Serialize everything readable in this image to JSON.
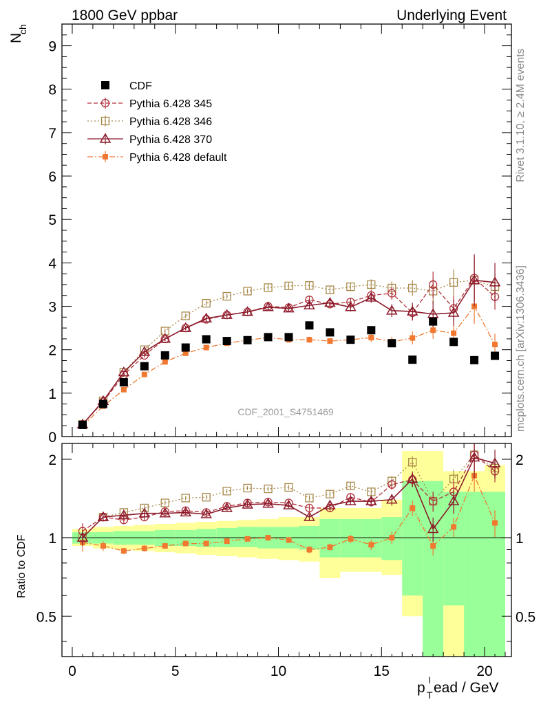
{
  "header": {
    "left": "1800 GeV ppbar",
    "right": "Underlying Event"
  },
  "side_labels": {
    "top": "Rivet 3.1.10, ≥ 2.4M events",
    "bottom": "mcplots.cern.ch [arXiv:1306.3436]"
  },
  "watermark": "CDF_2001_S4751469",
  "colors": {
    "cdf": "#000000",
    "p345": "#b0303a",
    "p346": "#a8884a",
    "p370": "#8b1a2b",
    "pdef": "#f07830",
    "band_green": "#99ff99",
    "band_yellow": "#ffff99"
  },
  "chart_data": {
    "type": "scatter",
    "title": "1800 GeV ppbar — Underlying Event",
    "ylabel_main": "N",
    "ylabel_main_sub": "ch",
    "ylabel_ratio": "Ratio to CDF",
    "xlabel_main": "p",
    "xlabel_sub": "T",
    "xlabel_sup": "l",
    "xlabel_rest": "ead / GeV",
    "xlim": [
      -0.5,
      21.3
    ],
    "ylim_main": [
      0,
      9.5
    ],
    "ylim_ratio": [
      0.35,
      2.3
    ],
    "x_ticks": [
      0,
      5,
      10,
      15,
      20
    ],
    "y_ticks_main": [
      0,
      1,
      2,
      3,
      4,
      5,
      6,
      7,
      8,
      9
    ],
    "y_ticks_ratio": [
      0.5,
      1,
      2
    ],
    "x": [
      0.5,
      1.5,
      2.5,
      3.5,
      4.5,
      5.5,
      6.5,
      7.5,
      8.5,
      9.5,
      10.5,
      11.5,
      12.5,
      13.5,
      14.5,
      15.5,
      16.5,
      17.5,
      18.5,
      19.5,
      20.5
    ],
    "legend": [
      {
        "key": "cdf",
        "label": "CDF",
        "marker": "square-filled",
        "dash": "none"
      },
      {
        "key": "p345",
        "label": "Pythia 6.428 345",
        "marker": "circle-open",
        "dash": "6,3"
      },
      {
        "key": "p346",
        "label": "Pythia 6.428 346",
        "marker": "square-open",
        "dash": "2,3"
      },
      {
        "key": "p370",
        "label": "Pythia 6.428 370",
        "marker": "triangle-open",
        "dash": "none"
      },
      {
        "key": "pdef",
        "label": "Pythia 6.428 default",
        "marker": "square-filled-small",
        "dash": "8,3,2,3"
      }
    ],
    "series": [
      {
        "key": "cdf",
        "name": "CDF",
        "values": [
          0.27,
          0.75,
          1.25,
          1.62,
          1.87,
          2.05,
          2.24,
          2.2,
          2.22,
          2.29,
          2.29,
          2.56,
          2.4,
          2.23,
          2.45,
          2.15,
          1.77,
          2.65,
          2.18,
          1.76,
          1.86
        ]
      },
      {
        "key": "p345",
        "name": "Pythia 6.428 345",
        "values": [
          0.28,
          0.8,
          1.42,
          1.87,
          2.25,
          2.5,
          2.7,
          2.8,
          2.87,
          3.0,
          2.97,
          3.15,
          3.05,
          3.1,
          3.25,
          3.3,
          2.85,
          3.5,
          2.95,
          3.65,
          3.22
        ],
        "errors": [
          0.02,
          0.03,
          0.04,
          0.05,
          0.05,
          0.05,
          0.06,
          0.06,
          0.06,
          0.07,
          0.07,
          0.08,
          0.09,
          0.1,
          0.12,
          0.15,
          0.18,
          0.3,
          0.3,
          0.5,
          0.3
        ],
        "ratio": [
          1.06,
          1.2,
          1.17,
          1.2,
          1.26,
          1.27,
          1.25,
          1.32,
          1.36,
          1.37,
          1.36,
          1.3,
          1.3,
          1.43,
          1.37,
          1.6,
          1.67,
          1.38,
          1.5,
          2.08,
          1.8
        ]
      },
      {
        "key": "p346",
        "name": "Pythia 6.428 346",
        "values": [
          0.28,
          0.82,
          1.48,
          2.0,
          2.43,
          2.78,
          3.07,
          3.23,
          3.35,
          3.43,
          3.47,
          3.48,
          3.38,
          3.45,
          3.5,
          3.42,
          3.42,
          3.35,
          3.55,
          3.6,
          3.45
        ],
        "errors": [
          0.02,
          0.03,
          0.04,
          0.05,
          0.05,
          0.05,
          0.06,
          0.06,
          0.06,
          0.07,
          0.07,
          0.08,
          0.09,
          0.1,
          0.12,
          0.15,
          0.18,
          0.3,
          0.3,
          0.5,
          0.3
        ],
        "ratio": [
          1.0,
          1.2,
          1.25,
          1.3,
          1.36,
          1.42,
          1.43,
          1.51,
          1.55,
          1.54,
          1.56,
          1.42,
          1.47,
          1.58,
          1.5,
          1.65,
          1.95,
          1.38,
          1.68,
          2.08,
          1.85
        ]
      },
      {
        "key": "p370",
        "name": "Pythia 6.428 370",
        "values": [
          0.28,
          0.82,
          1.48,
          1.95,
          2.25,
          2.5,
          2.72,
          2.8,
          2.87,
          2.98,
          2.95,
          3.02,
          3.08,
          2.98,
          3.2,
          2.9,
          2.88,
          2.82,
          2.85,
          3.6,
          3.55
        ],
        "errors": [
          0.02,
          0.03,
          0.04,
          0.05,
          0.05,
          0.05,
          0.06,
          0.06,
          0.06,
          0.07,
          0.07,
          0.08,
          0.09,
          0.1,
          0.12,
          0.15,
          0.2,
          0.3,
          0.3,
          0.6,
          0.45
        ],
        "ratio": [
          1.0,
          1.2,
          1.22,
          1.24,
          1.24,
          1.25,
          1.23,
          1.3,
          1.34,
          1.35,
          1.33,
          1.2,
          1.33,
          1.38,
          1.38,
          1.4,
          1.68,
          1.08,
          1.38,
          2.03,
          1.93
        ]
      },
      {
        "key": "pdef",
        "name": "Pythia 6.428 default",
        "values": [
          0.25,
          0.7,
          1.08,
          1.43,
          1.72,
          1.92,
          2.05,
          2.15,
          2.22,
          2.28,
          2.23,
          2.23,
          2.2,
          2.23,
          2.28,
          2.18,
          2.27,
          2.45,
          2.38,
          3.0,
          2.12
        ],
        "errors": [
          0.02,
          0.03,
          0.03,
          0.04,
          0.04,
          0.04,
          0.05,
          0.05,
          0.05,
          0.06,
          0.06,
          0.07,
          0.07,
          0.08,
          0.1,
          0.12,
          0.15,
          0.2,
          0.2,
          0.4,
          0.25
        ],
        "ratio": [
          0.96,
          0.93,
          0.89,
          0.91,
          0.93,
          0.95,
          0.95,
          0.97,
          0.99,
          1.0,
          0.98,
          0.9,
          0.92,
          0.99,
          0.94,
          1.0,
          1.3,
          0.93,
          1.1,
          1.73,
          1.14
        ]
      }
    ],
    "uncertainty_bands": {
      "green_low": [
        0.95,
        0.95,
        0.94,
        0.94,
        0.93,
        0.93,
        0.92,
        0.92,
        0.92,
        0.91,
        0.91,
        0.9,
        0.84,
        0.84,
        0.84,
        0.82,
        0.6,
        0.35,
        0.55,
        0.35,
        0.35
      ],
      "green_high": [
        1.05,
        1.05,
        1.06,
        1.06,
        1.07,
        1.07,
        1.08,
        1.09,
        1.1,
        1.1,
        1.1,
        1.11,
        1.18,
        1.18,
        1.18,
        1.2,
        1.65,
        1.65,
        1.5,
        1.5,
        1.5
      ],
      "yellow_low": [
        0.93,
        0.91,
        0.9,
        0.89,
        0.88,
        0.87,
        0.86,
        0.85,
        0.84,
        0.83,
        0.82,
        0.81,
        0.7,
        0.74,
        0.74,
        0.72,
        0.5,
        0.35,
        0.35,
        0.4,
        0.35
      ],
      "yellow_high": [
        1.08,
        1.1,
        1.11,
        1.12,
        1.13,
        1.14,
        1.15,
        1.16,
        1.17,
        1.18,
        1.2,
        1.2,
        1.3,
        1.3,
        1.3,
        1.4,
        2.15,
        2.15,
        1.8,
        1.8,
        1.9
      ]
    }
  }
}
